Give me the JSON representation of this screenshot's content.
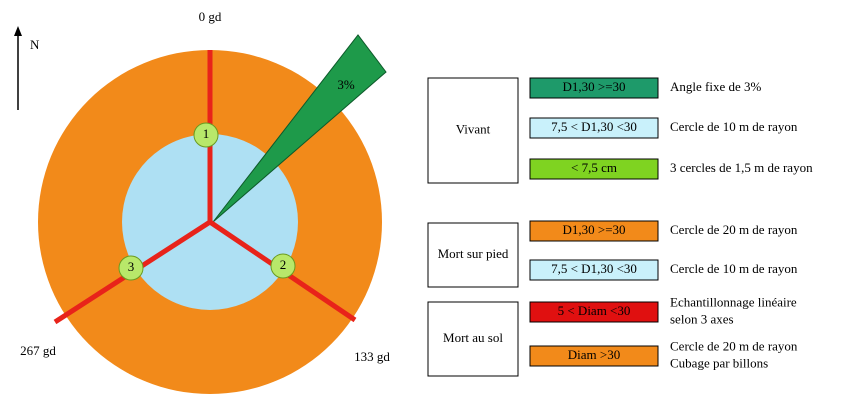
{
  "diagram": {
    "north": "N",
    "bearings": [
      "0 gd",
      "133 gd",
      "267 gd"
    ],
    "wedge": "3%",
    "plots": [
      "1",
      "2",
      "3"
    ]
  },
  "legend": {
    "groups": [
      {
        "name": "Vivant",
        "items": [
          {
            "class": "D1,30 >=30",
            "desc": [
              "Angle fixe de 3%"
            ],
            "color": "#1e9a6a"
          },
          {
            "class": "7,5 < D1,30 <30",
            "desc": [
              "Cercle de 10 m de rayon"
            ],
            "color": "#c9f1fb"
          },
          {
            "class": "< 7,5 cm",
            "desc": [
              "3 cercles de 1,5 m de rayon"
            ],
            "color": "#7fd321"
          }
        ]
      },
      {
        "name": "Mort sur pied",
        "items": [
          {
            "class": "D1,30 >=30",
            "desc": [
              "Cercle de 20 m de rayon"
            ],
            "color": "#f28a1a"
          },
          {
            "class": "7,5 < D1,30 <30",
            "desc": [
              "Cercle de 10 m de rayon"
            ],
            "color": "#c9f1fb"
          }
        ]
      },
      {
        "name": "Mort au sol",
        "items": [
          {
            "class": "5 < Diam <30",
            "desc": [
              "Echantillonnage linéaire",
              "selon 3 axes"
            ],
            "color": "#e01010"
          },
          {
            "class": "Diam >30",
            "desc": [
              "Cercle de 20 m de rayon",
              "Cubage par billons"
            ],
            "color": "#f28a1a"
          }
        ]
      }
    ]
  }
}
